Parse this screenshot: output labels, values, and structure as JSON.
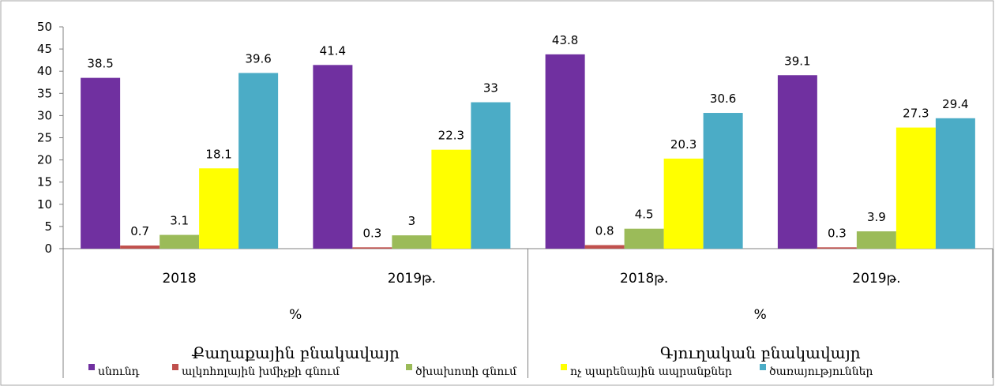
{
  "chart_data": {
    "type": "bar",
    "ylim": [
      0,
      50
    ],
    "yticks": [
      0,
      5,
      10,
      15,
      20,
      25,
      30,
      35,
      40,
      45,
      50
    ],
    "grid": false,
    "legend_position": "bottom",
    "categories": [
      "2018",
      "2019թ.",
      "2018թ.",
      "2019թ."
    ],
    "unit_labels": [
      "%",
      "%"
    ],
    "groups": [
      {
        "label": "Քաղաքային բնակավայր",
        "categories": [
          0,
          1
        ]
      },
      {
        "label": "Գյուղական բնակավայր",
        "categories": [
          2,
          3
        ]
      }
    ],
    "series": [
      {
        "name": "սնունդ",
        "color": "#7030A0",
        "values": [
          38.5,
          41.4,
          43.8,
          39.1
        ]
      },
      {
        "name": "ալկոհոլային խմիչքի գնում",
        "color": "#C0504D",
        "values": [
          0.7,
          0.3,
          0.8,
          0.3
        ]
      },
      {
        "name": "ծխախոտի գնում",
        "color": "#9BBB59",
        "values": [
          3.1,
          3,
          4.5,
          3.9
        ]
      },
      {
        "name": "ոչ պարենային ապրանքներ",
        "color": "#FFFF00",
        "values": [
          18.1,
          22.3,
          20.3,
          27.3
        ]
      },
      {
        "name": "ծառայություններ",
        "color": "#4BACC6",
        "values": [
          39.6,
          33,
          30.6,
          29.4
        ]
      }
    ]
  }
}
